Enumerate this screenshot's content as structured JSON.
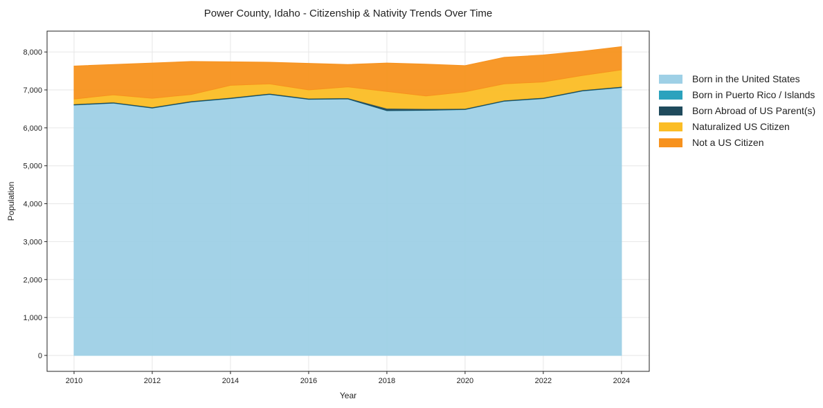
{
  "chart_data": {
    "type": "area",
    "stacked": true,
    "title": "Power County, Idaho - Citizenship & Nativity Trends Over Time",
    "xlabel": "Year",
    "ylabel": "Population",
    "x": [
      2010,
      2011,
      2012,
      2013,
      2014,
      2015,
      2016,
      2017,
      2018,
      2019,
      2020,
      2021,
      2022,
      2023,
      2024
    ],
    "xticks": [
      2010,
      2012,
      2014,
      2016,
      2018,
      2020,
      2022,
      2024
    ],
    "yticks": [
      0,
      1000,
      2000,
      3000,
      4000,
      5000,
      6000,
      7000,
      8000
    ],
    "ytick_labels": [
      "0",
      "1,000",
      "2,000",
      "3,000",
      "4,000",
      "5,000",
      "6,000",
      "7,000",
      "8,000"
    ],
    "xlim": [
      2009.31,
      2024.71
    ],
    "ylim": [
      -420,
      8550
    ],
    "grid": true,
    "legend_position": "right",
    "series": [
      {
        "name": "Born in the United States",
        "color": "#9ed0e6",
        "values": [
          6600,
          6650,
          6520,
          6680,
          6770,
          6880,
          6750,
          6760,
          6450,
          6460,
          6480,
          6700,
          6770,
          6970,
          7060
        ]
      },
      {
        "name": "Born in Puerto Rico / Islands",
        "color": "#2ba2bd",
        "values": [
          5,
          5,
          5,
          5,
          5,
          5,
          5,
          5,
          5,
          5,
          5,
          5,
          5,
          5,
          5
        ]
      },
      {
        "name": "Born Abroad of US Parent(s)",
        "color": "#1f4a5c",
        "values": [
          25,
          25,
          25,
          25,
          25,
          25,
          25,
          25,
          60,
          40,
          25,
          25,
          25,
          25,
          25
        ]
      },
      {
        "name": "Naturalized US Citizen",
        "color": "#fbbd25",
        "values": [
          130,
          190,
          230,
          170,
          320,
          250,
          220,
          290,
          445,
          335,
          440,
          430,
          410,
          380,
          440
        ]
      },
      {
        "name": "Not a US Citizen",
        "color": "#f7921e",
        "values": [
          870,
          800,
          930,
          870,
          620,
          570,
          700,
          590,
          750,
          840,
          690,
          700,
          710,
          640,
          610
        ]
      }
    ]
  }
}
